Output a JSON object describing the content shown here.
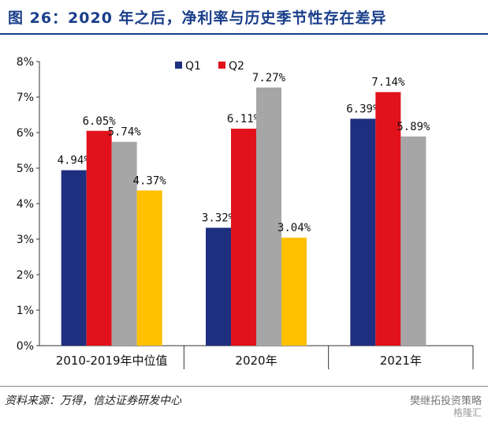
{
  "title": "图 26：2020 年之后，净利率与历史季节性存在差异",
  "source": "资料来源：万得，信达证券研发中心",
  "watermark": "樊继拓投资策略",
  "watermark2": "格隆汇",
  "chart_data": {
    "type": "bar",
    "categories": [
      "2010-2019年中位值",
      "2020年",
      "2021年"
    ],
    "series": [
      {
        "name": "Q1",
        "color": "#1f2f7f",
        "values": [
          4.94,
          3.32,
          6.39
        ]
      },
      {
        "name": "Q2",
        "color": "#e2121d",
        "values": [
          6.05,
          6.11,
          7.14
        ]
      },
      {
        "name": "",
        "color": "#a6a6a6",
        "values": [
          5.74,
          7.27,
          5.89
        ]
      },
      {
        "name": "",
        "color": "#ffc000",
        "values": [
          4.37,
          3.04,
          null
        ]
      }
    ],
    "data_labels": [
      [
        "4.94%",
        "3.32%",
        "6.39%"
      ],
      [
        "6.05%",
        "6.11%",
        "7.14%"
      ],
      [
        "5.74%",
        "7.27%",
        "5.89%"
      ],
      [
        "4.37%",
        "3.04%",
        null
      ]
    ],
    "yticks": [
      "0%",
      "1%",
      "2%",
      "3%",
      "4%",
      "5%",
      "6%",
      "7%",
      "8%"
    ],
    "ylim": [
      0,
      8
    ],
    "legend": "top-center"
  }
}
